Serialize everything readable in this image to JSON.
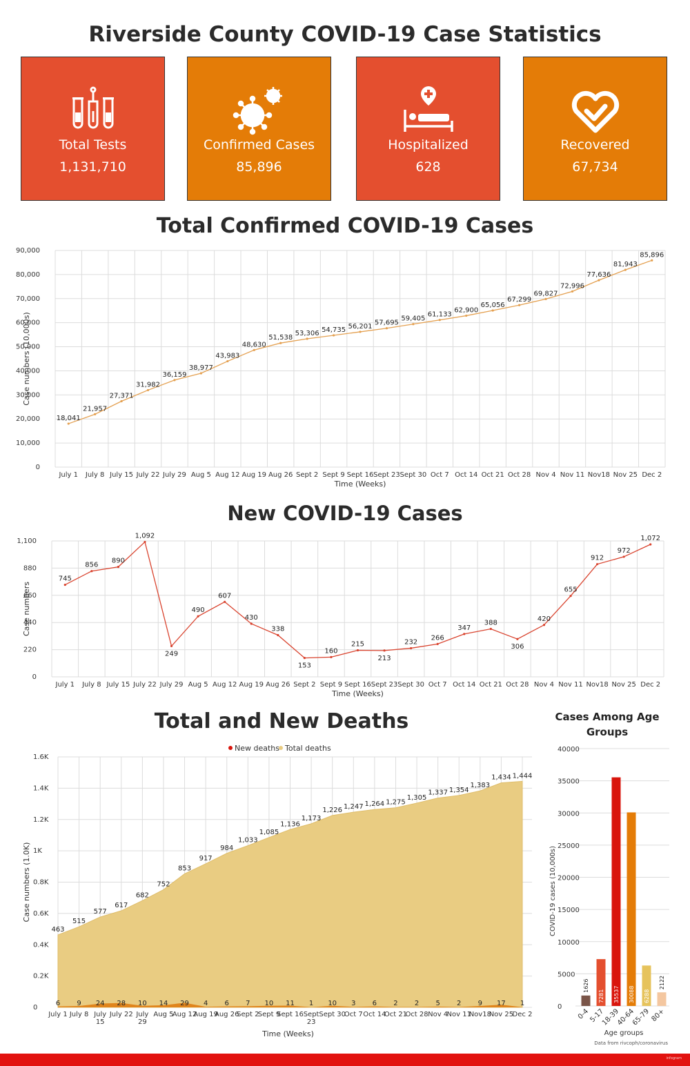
{
  "page": {
    "title": "Riverside County COVID-19 Case Statistics",
    "source": "Data from rivcoph/coronavirus",
    "brand": "infogram",
    "colors": {
      "red_card": "#e44f2f",
      "orange_card": "#e47c07",
      "footer": "#e2120f",
      "text": "#2b2b2b"
    }
  },
  "cards": [
    {
      "label": "Total Tests",
      "value": "1,131,710",
      "icon": "test-tubes-icon",
      "color": "#e44f2f"
    },
    {
      "label": "Confirmed Cases",
      "value": "85,896",
      "icon": "virus-icon",
      "color": "#e47c07"
    },
    {
      "label": "Hospitalized",
      "value": "628",
      "icon": "hospital-bed-icon",
      "color": "#e44f2f"
    },
    {
      "label": "Recovered",
      "value": "67,734",
      "icon": "heart-check-icon",
      "color": "#e47c07"
    }
  ],
  "chart_data": [
    {
      "id": "total",
      "type": "line",
      "title": "Total Confirmed COVID-19 Cases",
      "xlabel": "Time (Weeks)",
      "ylabel": "Case numbers (10,000s)",
      "ylim": [
        0,
        90000
      ],
      "yticks": [
        0,
        10000,
        20000,
        30000,
        40000,
        50000,
        60000,
        70000,
        80000,
        90000
      ],
      "ytick_labels": [
        "0",
        "10,000",
        "20,000",
        "30,000",
        "40,000",
        "50,000",
        "60,000",
        "70,000",
        "80,000",
        "90,000"
      ],
      "grid": true,
      "color": "#e4a050",
      "categories": [
        "July 1",
        "July 8",
        "July 15",
        "July 22",
        "July 29",
        "Aug 5",
        "Aug 12",
        "Aug 19",
        "Aug 26",
        "Sept 2",
        "Sept 9",
        "Sept 16",
        "Sept 23",
        "Sept 30",
        "Oct 7",
        "Oct 14",
        "Oct 21",
        "Oct 28",
        "Nov 4",
        "Nov 11",
        "Nov18",
        "Nov 25",
        "Dec 2"
      ],
      "values": [
        18041,
        21957,
        27371,
        31982,
        36159,
        38977,
        43983,
        48630,
        51538,
        53306,
        54735,
        56201,
        57695,
        59405,
        61133,
        62900,
        65056,
        67299,
        69827,
        72996,
        77636,
        81943,
        85896
      ],
      "value_labels": [
        "18,041",
        "21,957",
        "27,371",
        "31,982",
        "36,159",
        "38,977",
        "43,983",
        "48,630",
        "51,538",
        "53,306",
        "54,735",
        "56,201",
        "57,695",
        "59,405",
        "61,133",
        "62,900",
        "65,056",
        "67,299",
        "69,827",
        "72,996",
        "77,636",
        "81,943",
        "85,896"
      ]
    },
    {
      "id": "new",
      "type": "line",
      "title": "New COVID-19 Cases",
      "xlabel": "Time (Weeks)",
      "ylabel": "Case numbers",
      "ylim": [
        0,
        1100
      ],
      "yticks": [
        0,
        220,
        440,
        660,
        880,
        1100
      ],
      "ytick_labels": [
        "0",
        "220",
        "440",
        "660",
        "880",
        "1,100"
      ],
      "grid": true,
      "color": "#d9432e",
      "categories": [
        "July 1",
        "July 8",
        "July 15",
        "July 22",
        "July 29",
        "Aug 5",
        "Aug 12",
        "Aug 19",
        "Aug 26",
        "Sept 2",
        "Sept 9",
        "Sept 16",
        "Sept 23",
        "Sept 30",
        "Oct 7",
        "Oct 14",
        "Oct 21",
        "Oct 28",
        "Nov 4",
        "Nov 11",
        "Nov18",
        "Nov 25",
        "Dec 2"
      ],
      "values": [
        745,
        856,
        890,
        1092,
        249,
        490,
        607,
        430,
        338,
        153,
        160,
        215,
        213,
        232,
        266,
        347,
        388,
        306,
        420,
        655,
        912,
        972,
        1072
      ],
      "value_labels": [
        "745",
        "856",
        "890",
        "1,092",
        "249",
        "490",
        "607",
        "430",
        "338",
        "153",
        "160",
        "215",
        "213",
        "232",
        "266",
        "347",
        "388",
        "306",
        "420",
        "655",
        "912",
        "972",
        "1,072"
      ]
    },
    {
      "id": "deaths",
      "type": "area",
      "title": "Total and New Deaths",
      "xlabel": "Time (Weeks)",
      "ylabel": "Case numbers (1.0K)",
      "ylim": [
        0,
        1600
      ],
      "yticks": [
        0,
        200,
        400,
        600,
        800,
        1000,
        1200,
        1400,
        1600
      ],
      "ytick_labels": [
        "0",
        "0.2K",
        "0.4K",
        "0.6K",
        "0.8K",
        "1K",
        "1.2K",
        "1.4K",
        "1.6K"
      ],
      "grid": true,
      "legend_position": "top",
      "categories": [
        "July 1",
        "July 8",
        "July 15",
        "July 22",
        "July 29",
        "Aug 5",
        "Aug 12",
        "Aug 19",
        "Aug 26",
        "Sept 2",
        "Sept 9",
        "Sept 16",
        "Sept 23",
        "Sept 30",
        "Oct 7",
        "Oct 14",
        "Oct 21",
        "Oct 28",
        "Nov 4",
        "Nov 11",
        "Nov18",
        "Nov 25",
        "Dec 2"
      ],
      "series": [
        {
          "name": "Total deaths",
          "color": "#e9cc82",
          "values": [
            463,
            515,
            577,
            617,
            682,
            752,
            853,
            917,
            984,
            1033,
            1085,
            1136,
            1173,
            1226,
            1247,
            1264,
            1275,
            1305,
            1337,
            1354,
            1383,
            1434,
            1444
          ],
          "labels": [
            "463",
            "515",
            "577",
            "617",
            "682",
            "752",
            "853",
            "917",
            "984",
            "1,033",
            "1,085",
            "1,136",
            "1,173",
            "1,226",
            "1,247",
            "1,264",
            "1,275",
            "1,305",
            "1,337",
            "1,354",
            "1,383",
            "1,434",
            "1,444"
          ]
        },
        {
          "name": "New deaths",
          "color": "#e0851d",
          "legend_color": "#d9150c",
          "values": [
            6,
            9,
            24,
            28,
            10,
            14,
            29,
            4,
            6,
            7,
            10,
            11,
            1,
            10,
            3,
            6,
            2,
            2,
            5,
            2,
            9,
            17,
            1
          ],
          "labels": [
            "6",
            "9",
            "24",
            "28",
            "10",
            "14",
            "29",
            "4",
            "6",
            "7",
            "10",
            "11",
            "1",
            "10",
            "3",
            "6",
            "2",
            "2",
            "5",
            "2",
            "9",
            "17",
            "1"
          ]
        }
      ],
      "legend": [
        "New deaths",
        "Total deaths"
      ]
    },
    {
      "id": "age",
      "type": "bar",
      "title": "Cases Among Age Groups",
      "xlabel": "Age groups",
      "ylabel": "COVID-19 cases (10,000s)",
      "ylim": [
        0,
        40000
      ],
      "yticks": [
        0,
        5000,
        10000,
        15000,
        20000,
        25000,
        30000,
        35000,
        40000
      ],
      "ytick_labels": [
        "0",
        "5000",
        "10000",
        "15000",
        "20000",
        "25000",
        "30000",
        "35000",
        "40000"
      ],
      "grid": true,
      "categories": [
        "0-4",
        "5-17",
        "18-39",
        "40-64",
        "65-79",
        "80+"
      ],
      "values": [
        1626,
        7281,
        35537,
        30088,
        6288,
        2122
      ],
      "value_labels": [
        "1626",
        "7281",
        "35537",
        "30088",
        "6288",
        "2122"
      ],
      "colors": [
        "#7a5548",
        "#e44f2f",
        "#d9150c",
        "#e47c07",
        "#e6c35c",
        "#f4c7a0"
      ]
    }
  ]
}
